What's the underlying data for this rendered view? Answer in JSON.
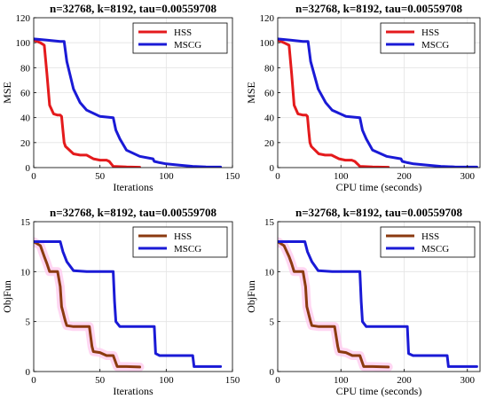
{
  "colors": {
    "hss_red": "#e41a1c",
    "hss_brown": "#8b3a0f",
    "mscg_blue": "#1a1ad6",
    "band_pink": "#ffc8ee"
  },
  "chart_data": [
    {
      "type": "line",
      "title": "n=32768, k=8192, tau=0.00559708",
      "xlabel": "Iterations",
      "ylabel": "MSE",
      "xlim": [
        0,
        150
      ],
      "ylim": [
        0,
        120
      ],
      "xticks": [
        0,
        50,
        100,
        150
      ],
      "yticks": [
        0,
        20,
        40,
        60,
        80,
        100,
        120
      ],
      "grid": true,
      "legend_position": "top-right",
      "series": [
        {
          "name": "HSS",
          "color": "#e41a1c",
          "x": [
            0,
            5,
            8,
            10,
            12,
            15,
            18,
            20,
            21,
            22,
            23,
            24,
            25,
            30,
            35,
            40,
            45,
            50,
            55,
            57,
            60,
            70,
            80
          ],
          "y": [
            102,
            100,
            98,
            75,
            50,
            43,
            42,
            42,
            41,
            30,
            20,
            17,
            16,
            11,
            10,
            10,
            7,
            6,
            6,
            5,
            1,
            0.5,
            0.3
          ]
        },
        {
          "name": "MSCG",
          "color": "#1a1ad6",
          "x": [
            0,
            10,
            20,
            23,
            25,
            30,
            35,
            40,
            50,
            60,
            62,
            65,
            70,
            80,
            90,
            91,
            95,
            100,
            110,
            120,
            130,
            141
          ],
          "y": [
            103,
            102,
            101,
            101,
            85,
            63,
            52,
            46,
            41,
            40,
            30,
            23,
            14,
            9,
            7,
            5,
            4,
            3,
            2,
            1,
            0.6,
            0.4
          ]
        }
      ]
    },
    {
      "type": "line",
      "title": "n=32768, k=8192, tau=0.00559708",
      "xlabel": "CPU time (seconds)",
      "ylabel": "MSE",
      "xlim": [
        0,
        320
      ],
      "ylim": [
        0,
        120
      ],
      "xticks": [
        0,
        100,
        200,
        300
      ],
      "yticks": [
        0,
        20,
        40,
        60,
        80,
        100,
        120
      ],
      "grid": true,
      "legend_position": "top-right",
      "series": [
        {
          "name": "HSS",
          "color": "#e41a1c",
          "x": [
            0,
            10,
            18,
            22,
            26,
            32,
            40,
            45,
            47,
            49,
            51,
            53,
            55,
            65,
            75,
            85,
            97,
            107,
            117,
            122,
            130,
            150,
            175
          ],
          "y": [
            102,
            100,
            98,
            75,
            50,
            43,
            42,
            42,
            41,
            30,
            20,
            17,
            16,
            11,
            10,
            10,
            7,
            6,
            6,
            5,
            1,
            0.5,
            0.3
          ]
        },
        {
          "name": "MSCG",
          "color": "#1a1ad6",
          "x": [
            0,
            20,
            40,
            48,
            52,
            64,
            76,
            86,
            108,
            130,
            134,
            140,
            150,
            172,
            195,
            197,
            205,
            215,
            237,
            258,
            280,
            315
          ],
          "y": [
            103,
            102,
            101,
            101,
            85,
            63,
            52,
            46,
            41,
            40,
            30,
            23,
            14,
            9,
            7,
            5,
            4,
            3,
            2,
            1,
            0.6,
            0.4
          ]
        }
      ]
    },
    {
      "type": "line",
      "title": "n=32768, k=8192, tau=0.00559708",
      "xlabel": "Iterations",
      "ylabel": "ObjFun",
      "xlim": [
        0,
        150
      ],
      "ylim": [
        0,
        15
      ],
      "xticks": [
        0,
        50,
        100,
        150
      ],
      "yticks": [
        0,
        5,
        10,
        15
      ],
      "grid": true,
      "legend_position": "top-right",
      "series": [
        {
          "name": "HSS",
          "color": "#8b3a0f",
          "band": true,
          "x": [
            0,
            5,
            8,
            10,
            12,
            18,
            20,
            21,
            22,
            23,
            24,
            25,
            30,
            35,
            40,
            42,
            44,
            45,
            50,
            55,
            57,
            60,
            63,
            70,
            80
          ],
          "y": [
            13,
            12.6,
            11.5,
            10.8,
            10,
            10,
            8.5,
            6.5,
            6,
            5.5,
            5,
            4.6,
            4.5,
            4.5,
            4.5,
            4.5,
            2.5,
            2,
            1.9,
            1.6,
            1.6,
            1.6,
            0.5,
            0.5,
            0.45
          ]
        },
        {
          "name": "MSCG",
          "color": "#1a1ad6",
          "x": [
            0,
            20,
            22,
            25,
            30,
            40,
            60,
            61,
            62,
            65,
            75,
            91,
            92,
            95,
            120,
            121,
            141
          ],
          "y": [
            13,
            13,
            12,
            11,
            10.1,
            10,
            10,
            7,
            5,
            4.5,
            4.5,
            4.5,
            1.8,
            1.6,
            1.6,
            0.5,
            0.5
          ]
        }
      ]
    },
    {
      "type": "line",
      "title": "n=32768, k=8192, tau=0.00559708",
      "xlabel": "CPU time (seconds)",
      "ylabel": "ObjFun",
      "xlim": [
        0,
        320
      ],
      "ylim": [
        0,
        15
      ],
      "xticks": [
        0,
        100,
        200,
        300
      ],
      "yticks": [
        0,
        5,
        10,
        15
      ],
      "grid": true,
      "legend_position": "top-right",
      "series": [
        {
          "name": "HSS",
          "color": "#8b3a0f",
          "band": true,
          "x": [
            0,
            10,
            18,
            22,
            26,
            40,
            44,
            46,
            48,
            50,
            52,
            54,
            65,
            75,
            85,
            90,
            95,
            97,
            108,
            118,
            122,
            130,
            136,
            150,
            175
          ],
          "y": [
            13,
            12.6,
            11.5,
            10.8,
            10,
            10,
            8.5,
            6.5,
            6,
            5.5,
            5,
            4.6,
            4.5,
            4.5,
            4.5,
            4.5,
            2.5,
            2,
            1.9,
            1.6,
            1.6,
            1.6,
            0.5,
            0.5,
            0.45
          ]
        },
        {
          "name": "MSCG",
          "color": "#1a1ad6",
          "x": [
            0,
            43,
            47,
            54,
            64,
            86,
            130,
            132,
            134,
            140,
            162,
            205,
            207,
            214,
            268,
            270,
            315
          ],
          "y": [
            13,
            13,
            12,
            11,
            10.1,
            10,
            10,
            7,
            5,
            4.5,
            4.5,
            4.5,
            1.8,
            1.6,
            1.6,
            0.5,
            0.5
          ]
        }
      ]
    }
  ]
}
